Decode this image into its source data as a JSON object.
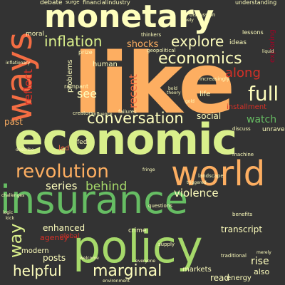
{
  "background": "#333333",
  "palette": [
    "#fde08b",
    "#fdae61",
    "#f46d43",
    "#d73027",
    "#a50026",
    "#d9ef8b",
    "#a6d96a",
    "#66bd63",
    "#1a9850",
    "#006837",
    "#fefebd"
  ],
  "words": [
    {
      "text": "like",
      "color": "#fdae61"
    },
    {
      "text": "economic",
      "color": "#d9ef8b"
    },
    {
      "text": "insurance",
      "color": "#66bd63"
    },
    {
      "text": "monetary",
      "color": "#fefebd"
    },
    {
      "text": "policy",
      "color": "#a6d96a"
    },
    {
      "text": "world",
      "color": "#fdae61"
    },
    {
      "text": "ways",
      "color": "#f46d43"
    },
    {
      "text": "revolution",
      "color": "#fdae61"
    },
    {
      "text": "economics",
      "color": "#fefebd"
    },
    {
      "text": "conversation",
      "color": "#fefebd"
    },
    {
      "text": "inflation",
      "color": "#d9ef8b"
    },
    {
      "text": "full",
      "color": "#fefebd"
    },
    {
      "text": "explore",
      "color": "#fefebd"
    },
    {
      "text": "marginal",
      "color": "#fefebd"
    },
    {
      "text": "helpful",
      "color": "#fefebd"
    },
    {
      "text": "behind",
      "color": "#a6d96a"
    },
    {
      "text": "series",
      "color": "#fefebd"
    },
    {
      "text": "way",
      "color": "#d9ef8b"
    },
    {
      "text": "recent",
      "color": "#f46d43"
    },
    {
      "text": "along",
      "color": "#d73027"
    },
    {
      "text": "watch",
      "color": "#66bd63"
    },
    {
      "text": "see",
      "color": "#fefebd"
    },
    {
      "text": "reflect",
      "color": "#d73027"
    },
    {
      "text": "violence",
      "color": "#fefebd"
    },
    {
      "text": "shocks",
      "color": "#fdae61"
    },
    {
      "text": "transcript",
      "color": "#fefebd"
    },
    {
      "text": "rise",
      "color": "#fefebd"
    },
    {
      "text": "enhanced",
      "color": "#fefebd"
    },
    {
      "text": "posts",
      "color": "#fefebd"
    },
    {
      "text": "read",
      "color": "#fefebd"
    },
    {
      "text": "energy",
      "color": "#fefebd"
    },
    {
      "text": "markets",
      "color": "#fefebd"
    },
    {
      "text": "also",
      "color": "#fefebd"
    },
    {
      "text": "agency",
      "color": "#d73027"
    },
    {
      "text": "modern",
      "color": "#fefebd"
    },
    {
      "text": "social",
      "color": "#fefebd"
    },
    {
      "text": "human",
      "color": "#fefebd"
    },
    {
      "text": "problems",
      "color": "#fefebd"
    },
    {
      "text": "led",
      "color": "#f46d43"
    },
    {
      "text": "past",
      "color": "#fdae61"
    },
    {
      "text": "moral",
      "color": "#fefebd"
    },
    {
      "text": "debate",
      "color": "#fefebd"
    },
    {
      "text": "life",
      "color": "#fefebd"
    },
    {
      "text": "installment",
      "color": "#d73027"
    },
    {
      "text": "exploring",
      "color": "#a50026"
    },
    {
      "text": "crime",
      "color": "#fefebd"
    },
    {
      "text": "fed",
      "color": "#fefebd"
    },
    {
      "text": "ideas",
      "color": "#fefebd"
    },
    {
      "text": "global",
      "color": "#d73027"
    },
    {
      "text": "financial",
      "color": "#fefebd"
    },
    {
      "text": "industry",
      "color": "#fefebd"
    },
    {
      "text": "unravel",
      "color": "#fefebd"
    },
    {
      "text": "lessons",
      "color": "#fefebd"
    },
    {
      "text": "understanding",
      "color": "#fefebd"
    },
    {
      "text": "prize",
      "color": "#fefebd"
    },
    {
      "text": "rampant",
      "color": "#fefebd"
    },
    {
      "text": "geopolitical",
      "color": "#fefebd"
    },
    {
      "text": "thinkers",
      "color": "#fefebd"
    },
    {
      "text": "landscape",
      "color": "#fefebd"
    },
    {
      "text": "creators",
      "color": "#fefebd"
    },
    {
      "text": "failures",
      "color": "#fefebd"
    },
    {
      "text": "supply",
      "color": "#fefebd"
    },
    {
      "text": "traditional",
      "color": "#fefebd"
    },
    {
      "text": "benefits",
      "color": "#fefebd"
    },
    {
      "text": "discuss",
      "color": "#fefebd"
    },
    {
      "text": "machine",
      "color": "#fefebd"
    },
    {
      "text": "increasingly",
      "color": "#fefebd"
    },
    {
      "text": "discussion",
      "color": "#fefebd"
    },
    {
      "text": "questions",
      "color": "#fefebd"
    },
    {
      "text": "surge",
      "color": "#fefebd"
    },
    {
      "text": "everyone",
      "color": "#fefebd"
    },
    {
      "text": "inflationary",
      "color": "#fefebd"
    },
    {
      "text": "logic",
      "color": "#fefebd"
    },
    {
      "text": "kick",
      "color": "#fefebd"
    },
    {
      "text": "theory",
      "color": "#fefebd"
    },
    {
      "text": "welcome",
      "color": "#fefebd"
    },
    {
      "text": "environment",
      "color": "#fefebd"
    },
    {
      "text": "fringe",
      "color": "#fefebd"
    },
    {
      "text": "challenges",
      "color": "#fefebd"
    },
    {
      "text": "merely",
      "color": "#fefebd"
    },
    {
      "text": "triggered",
      "color": "#fefebd"
    },
    {
      "text": "influence",
      "color": "#fefebd"
    },
    {
      "text": "bold",
      "color": "#fefebd"
    },
    {
      "text": "liquid",
      "color": "#fefebd"
    },
    {
      "text": "lively",
      "color": "#fefebd"
    },
    {
      "text": "describe",
      "color": "#fefebd"
    },
    {
      "text": "gold",
      "color": "#fefebd"
    }
  ]
}
